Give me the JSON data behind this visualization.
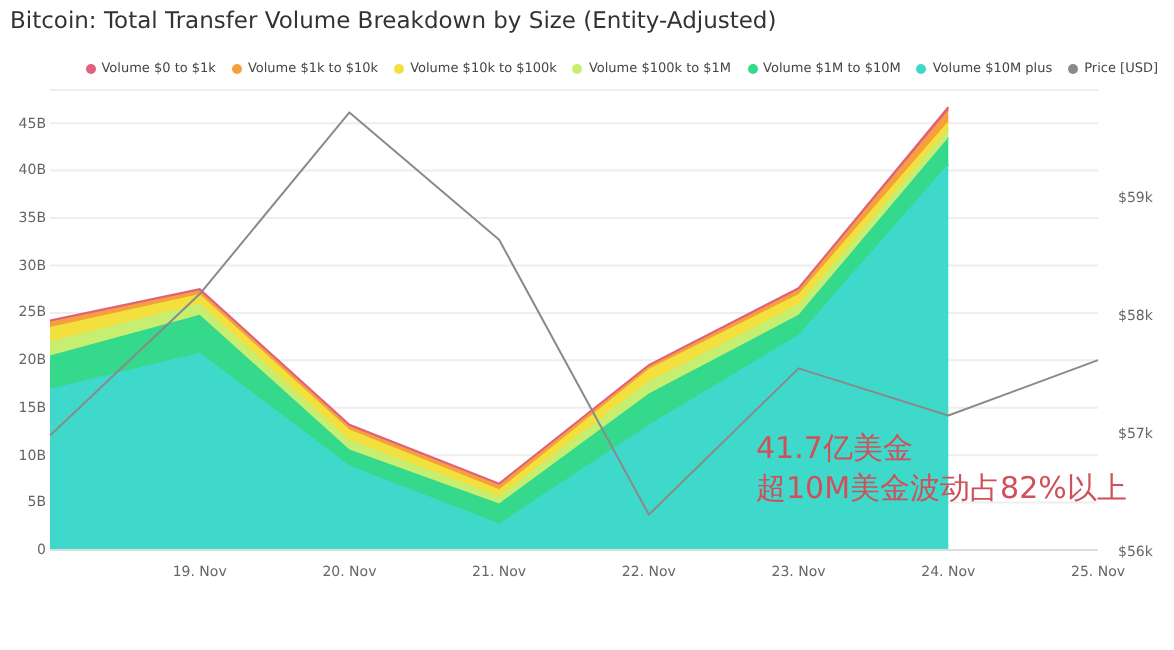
{
  "chart_data": {
    "type": "area",
    "stacked": true,
    "title": "Bitcoin: Total Transfer Volume Breakdown by Size (Entity-Adjusted)",
    "categories": [
      null,
      "19. Nov",
      "20. Nov",
      "21. Nov",
      "22. Nov",
      "23. Nov",
      "24. Nov",
      "25. Nov"
    ],
    "series": [
      {
        "name": "Volume $10M plus",
        "color": "#3fd9cb",
        "values": [
          17,
          20.8,
          8.9,
          2.8,
          13.2,
          22.7,
          40.7,
          null
        ]
      },
      {
        "name": "Volume $1M to $10M",
        "color": "#34d98c",
        "values": [
          3.5,
          4.0,
          1.7,
          2.1,
          3.3,
          2.1,
          2.8,
          null
        ]
      },
      {
        "name": "Volume $100k to $1M",
        "color": "#c6ee70",
        "values": [
          1.5,
          1.2,
          1.0,
          0.8,
          1.3,
          1.1,
          0.9,
          null
        ]
      },
      {
        "name": "Volume $10k to $100k",
        "color": "#f3e03e",
        "values": [
          1.5,
          1.0,
          1.1,
          0.7,
          1.3,
          1.1,
          0.8,
          null
        ]
      },
      {
        "name": "Volume $1k to $10k",
        "color": "#f5a03c",
        "values": [
          0.6,
          0.4,
          0.4,
          0.5,
          0.3,
          0.5,
          1.2,
          null
        ]
      },
      {
        "name": "Volume $0 to $1k",
        "color": "#e0607e",
        "values": [
          0.1,
          0.1,
          0.1,
          0.1,
          0.1,
          0.1,
          0.3,
          null
        ]
      },
      {
        "name": "Price [USD]",
        "type": "line",
        "axis": "y2",
        "color": "#8a8a8a",
        "values": [
          56.97,
          58.17,
          59.71,
          58.63,
          56.3,
          57.54,
          57.14,
          57.61
        ]
      }
    ],
    "ylim": [
      0,
      48.5
    ],
    "yticks": [
      0,
      {
        "value": 5,
        "label": "5B"
      },
      {
        "value": 10,
        "label": "10B"
      },
      {
        "value": 15,
        "label": "15B"
      },
      {
        "value": 20,
        "label": "20B"
      },
      {
        "value": 25,
        "label": "25B"
      },
      {
        "value": 30,
        "label": "30B"
      },
      {
        "value": 35,
        "label": "35B"
      },
      {
        "value": 40,
        "label": "40B"
      },
      {
        "value": 45,
        "label": "45B"
      }
    ],
    "y2lim": [
      56,
      59.9
    ],
    "y2ticks": [
      {
        "value": 56,
        "label": "$56k"
      },
      {
        "value": 57,
        "label": "$57k"
      },
      {
        "value": 58,
        "label": "$58k"
      },
      {
        "value": 59,
        "label": "$59k"
      }
    ],
    "grid": "y",
    "legend": "top",
    "marker": "none",
    "annotations": [
      "41.7亿美金",
      "超10M美金波动占82%以上"
    ]
  }
}
